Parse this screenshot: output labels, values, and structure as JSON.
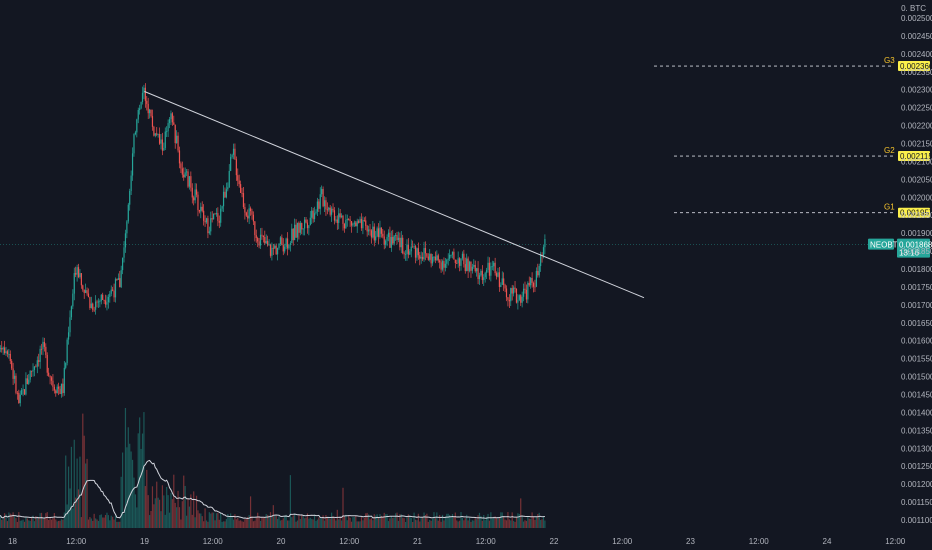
{
  "header": {
    "currency_label": "BTC",
    "currency_prefix": "0."
  },
  "chart_data": {
    "type": "candlestick",
    "symbol": "NEOBTC",
    "last_price": "0.001868",
    "countdown": "13:16",
    "ylim": [
      0.00108,
      0.00253
    ],
    "y_ticks": [
      "0.002500",
      "0.002450",
      "0.002400",
      "0.002350",
      "0.002300",
      "0.002250",
      "0.002200",
      "0.002150",
      "0.002100",
      "0.002050",
      "0.002000",
      "0.001950",
      "0.001900",
      "0.001850",
      "0.001800",
      "0.001750",
      "0.001700",
      "0.001650",
      "0.001600",
      "0.001550",
      "0.001500",
      "0.001450",
      "0.001400",
      "0.001350",
      "0.001300",
      "0.001250",
      "0.001200",
      "0.001150",
      "0.001100"
    ],
    "x_ticks": [
      "18",
      "12:00",
      "19",
      "12:00",
      "20",
      "12:00",
      "21",
      "12:00",
      "22",
      "12:00",
      "23",
      "12:00",
      "24",
      "12:00"
    ],
    "target_levels": [
      {
        "name": "G3",
        "value": 0.002366,
        "label": "0.002366"
      },
      {
        "name": "G2",
        "value": 0.002115,
        "label": "0.002115"
      },
      {
        "name": "G1",
        "value": 0.001957,
        "label": "0.001957"
      }
    ],
    "trendline": {
      "start": [
        "19 00:00",
        0.002295
      ],
      "end": [
        "22 17:00",
        0.00172
      ]
    },
    "price_path": [
      [
        -0.15,
        0.00162
      ],
      [
        0.0,
        0.00158
      ],
      [
        0.08,
        0.00142
      ],
      [
        0.15,
        0.0015
      ],
      [
        0.25,
        0.00158
      ],
      [
        0.33,
        0.00148
      ],
      [
        0.4,
        0.00146
      ],
      [
        0.5,
        0.00182
      ],
      [
        0.6,
        0.0017
      ],
      [
        0.7,
        0.00172
      ],
      [
        0.82,
        0.00176
      ],
      [
        0.88,
        0.00198
      ],
      [
        0.94,
        0.00222
      ],
      [
        1.0,
        0.0023
      ],
      [
        1.07,
        0.00218
      ],
      [
        1.13,
        0.00214
      ],
      [
        1.2,
        0.00222
      ],
      [
        1.27,
        0.00208
      ],
      [
        1.35,
        0.00202
      ],
      [
        1.45,
        0.00192
      ],
      [
        1.55,
        0.00195
      ],
      [
        1.65,
        0.00212
      ],
      [
        1.73,
        0.00198
      ],
      [
        1.82,
        0.0019
      ],
      [
        1.92,
        0.00185
      ],
      [
        2.05,
        0.00188
      ],
      [
        2.2,
        0.00194
      ],
      [
        2.3,
        0.002
      ],
      [
        2.4,
        0.00195
      ],
      [
        2.55,
        0.00192
      ],
      [
        2.7,
        0.0019
      ],
      [
        2.85,
        0.00187
      ],
      [
        3.0,
        0.00185
      ],
      [
        3.15,
        0.00182
      ],
      [
        3.3,
        0.00183
      ],
      [
        3.45,
        0.00178
      ],
      [
        3.55,
        0.0018
      ],
      [
        3.65,
        0.00174
      ],
      [
        3.73,
        0.00172
      ],
      [
        3.8,
        0.00174
      ],
      [
        3.88,
        0.00178
      ],
      [
        3.93,
        0.00186
      ],
      [
        3.94,
        0.001868
      ]
    ],
    "volume_series": "Volume",
    "volume_ma": "Volume MA"
  }
}
